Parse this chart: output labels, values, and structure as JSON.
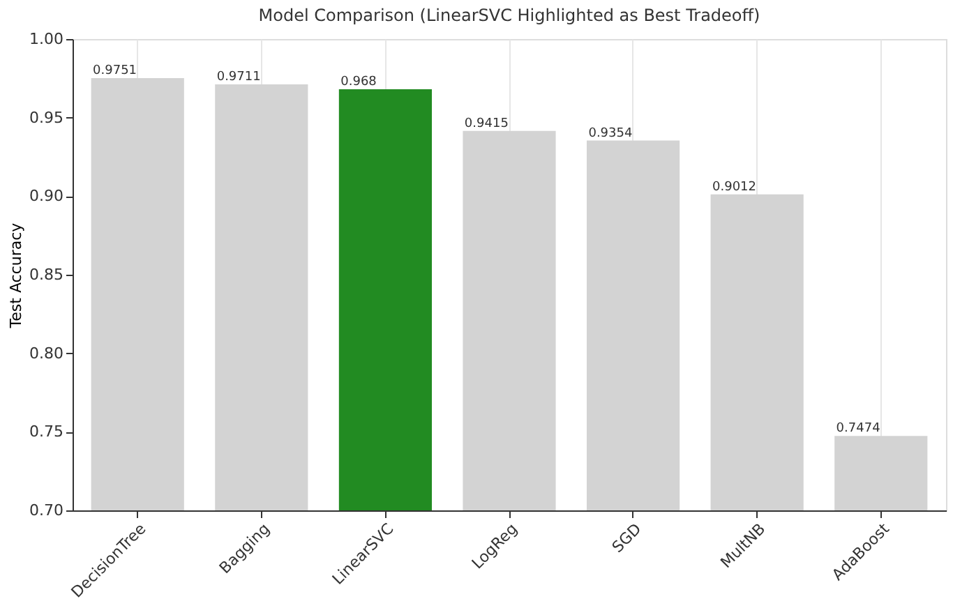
{
  "chart_data": {
    "type": "bar",
    "title": "Model Comparison (LinearSVC Highlighted as Best Tradeoff)",
    "ylabel": "Test Accuracy",
    "categories": [
      "DecisionTree",
      "Bagging",
      "LinearSVC",
      "LogReg",
      "SGD",
      "MultNB",
      "AdaBoost"
    ],
    "values": [
      0.9751,
      0.9711,
      0.968,
      0.9415,
      0.9354,
      0.9012,
      0.7474
    ],
    "colors": [
      "#d3d3d3",
      "#d3d3d3",
      "#228b22",
      "#d3d3d3",
      "#d3d3d3",
      "#d3d3d3",
      "#d3d3d3"
    ],
    "ylim": [
      0.7,
      1.0
    ],
    "yticks": [
      {
        "value": 0.7,
        "label": "0.70"
      },
      {
        "value": 0.75,
        "label": "0.75"
      },
      {
        "value": 0.8,
        "label": "0.80"
      },
      {
        "value": 0.85,
        "label": "0.85"
      },
      {
        "value": 0.9,
        "label": "0.90"
      },
      {
        "value": 0.95,
        "label": "0.95"
      },
      {
        "value": 1.0,
        "label": "1.00"
      }
    ],
    "grid": "x",
    "data_labels": true
  }
}
